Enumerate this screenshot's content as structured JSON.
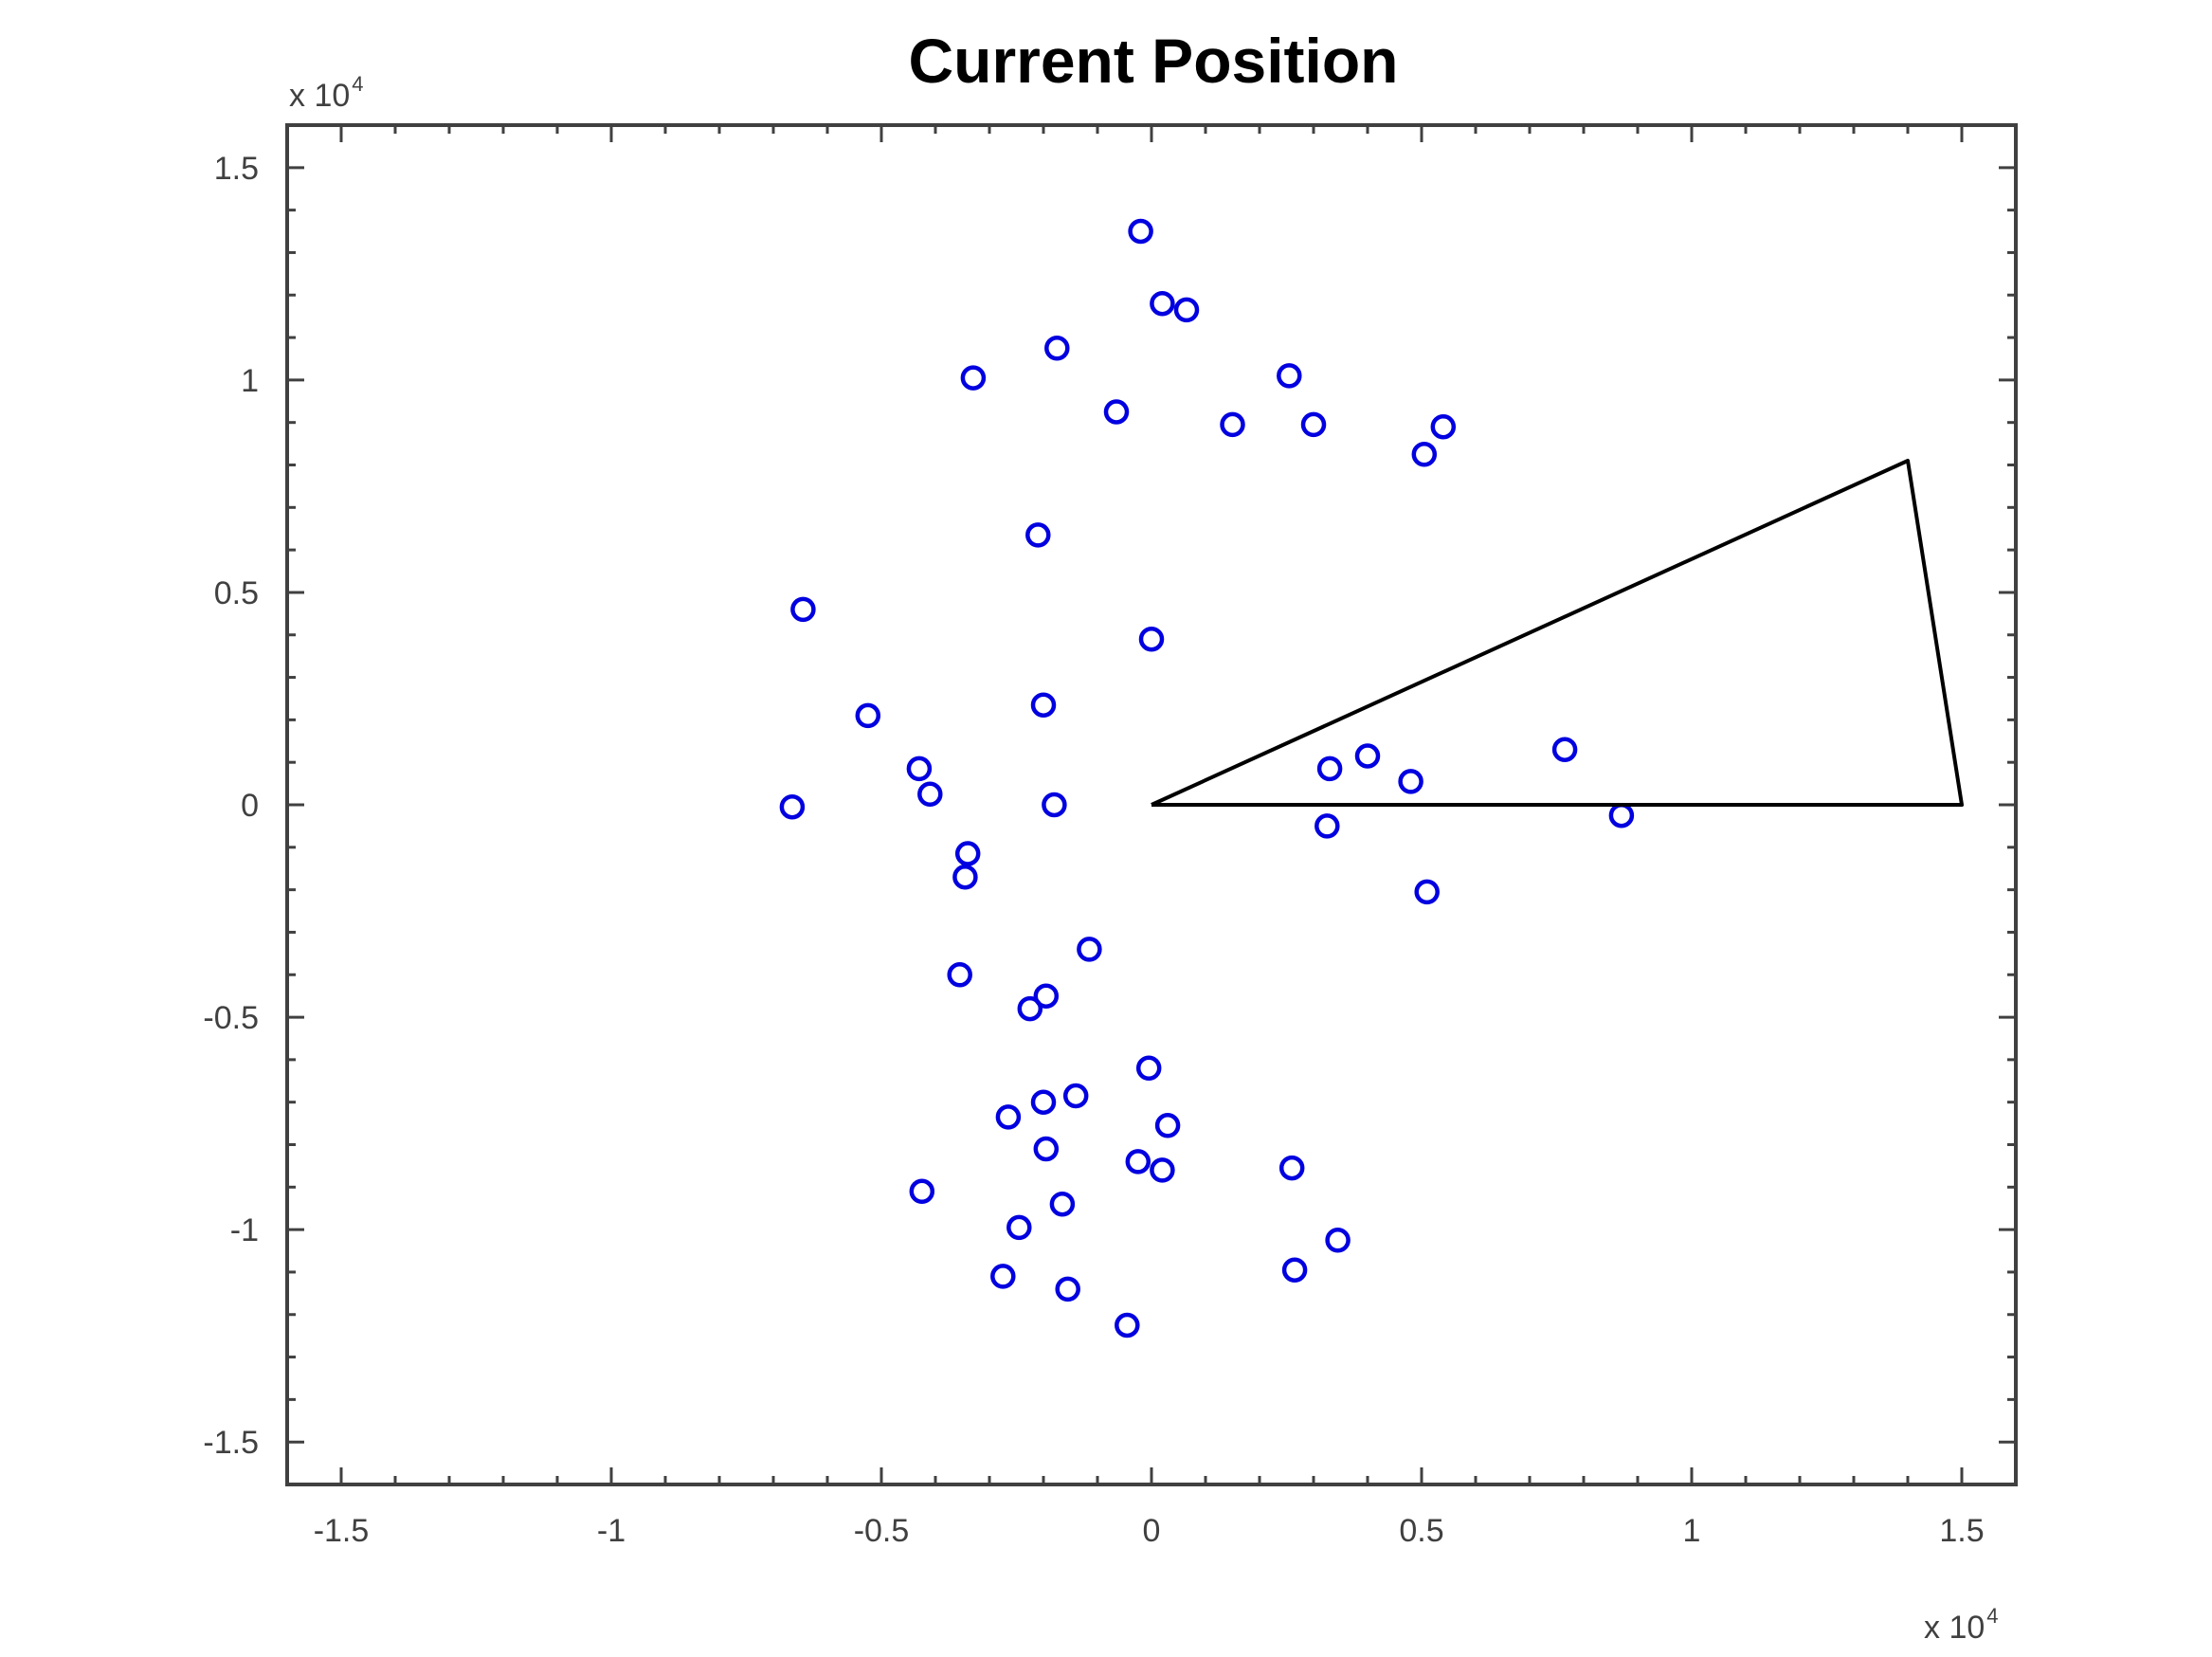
{
  "chart_data": {
    "type": "scatter",
    "title": "Current Position",
    "xlabel": "",
    "ylabel": "",
    "xlim": [
      -1.6,
      1.6
    ],
    "ylim": [
      -1.6,
      1.6
    ],
    "x_multiplier": {
      "base": "x 10",
      "exponent": "4"
    },
    "y_multiplier": {
      "base": "x 10",
      "exponent": "4"
    },
    "x_ticks": [
      {
        "value": -1.5,
        "label": "-1.5"
      },
      {
        "value": -1,
        "label": "-1"
      },
      {
        "value": -0.5,
        "label": "-0.5"
      },
      {
        "value": 0,
        "label": "0"
      },
      {
        "value": 0.5,
        "label": "0.5"
      },
      {
        "value": 1,
        "label": "1"
      },
      {
        "value": 1.5,
        "label": "1.5"
      }
    ],
    "y_ticks": [
      {
        "value": 1.5,
        "label": "1.5"
      },
      {
        "value": 1,
        "label": "1"
      },
      {
        "value": 0.5,
        "label": "0.5"
      },
      {
        "value": 0,
        "label": "0"
      },
      {
        "value": -0.5,
        "label": "-0.5"
      },
      {
        "value": -1,
        "label": "-1"
      },
      {
        "value": -1.5,
        "label": "-1.5"
      }
    ],
    "minor_tick_step": 0.1,
    "grid": false,
    "box": true,
    "series": [
      {
        "marker": "circle-open",
        "color": "#0000e0",
        "points": [
          [
            -0.02,
            1.35
          ],
          [
            0.02,
            1.18
          ],
          [
            0.065,
            1.165
          ],
          [
            -0.175,
            1.075
          ],
          [
            -0.33,
            1.005
          ],
          [
            0.255,
            1.01
          ],
          [
            -0.065,
            0.925
          ],
          [
            0.15,
            0.895
          ],
          [
            0.3,
            0.895
          ],
          [
            0.54,
            0.89
          ],
          [
            0.505,
            0.825
          ],
          [
            -0.21,
            0.635
          ],
          [
            -0.645,
            0.46
          ],
          [
            0.0,
            0.39
          ],
          [
            -0.525,
            0.21
          ],
          [
            -0.2,
            0.235
          ],
          [
            -0.43,
            0.085
          ],
          [
            -0.41,
            0.025
          ],
          [
            -0.665,
            -0.005
          ],
          [
            -0.18,
            0.0
          ],
          [
            0.33,
            0.085
          ],
          [
            0.4,
            0.115
          ],
          [
            0.48,
            0.055
          ],
          [
            0.765,
            0.13
          ],
          [
            0.325,
            -0.05
          ],
          [
            0.87,
            -0.025
          ],
          [
            -0.34,
            -0.115
          ],
          [
            -0.345,
            -0.17
          ],
          [
            0.51,
            -0.205
          ],
          [
            -0.115,
            -0.34
          ],
          [
            -0.355,
            -0.4
          ],
          [
            -0.195,
            -0.45
          ],
          [
            -0.225,
            -0.48
          ],
          [
            -0.005,
            -0.62
          ],
          [
            -0.265,
            -0.735
          ],
          [
            -0.2,
            -0.7
          ],
          [
            -0.14,
            -0.685
          ],
          [
            0.03,
            -0.755
          ],
          [
            -0.195,
            -0.81
          ],
          [
            -0.025,
            -0.84
          ],
          [
            0.02,
            -0.86
          ],
          [
            0.26,
            -0.855
          ],
          [
            -0.425,
            -0.91
          ],
          [
            -0.165,
            -0.94
          ],
          [
            -0.245,
            -0.995
          ],
          [
            0.345,
            -1.025
          ],
          [
            0.265,
            -1.095
          ],
          [
            -0.275,
            -1.11
          ],
          [
            -0.155,
            -1.14
          ],
          [
            -0.045,
            -1.225
          ]
        ]
      },
      {
        "marker": "none",
        "line": "solid",
        "color": "#000000",
        "points": [
          [
            0.0,
            0.0
          ],
          [
            1.4,
            0.81
          ],
          [
            1.5,
            0.0
          ],
          [
            0.0,
            0.0
          ]
        ]
      }
    ]
  }
}
